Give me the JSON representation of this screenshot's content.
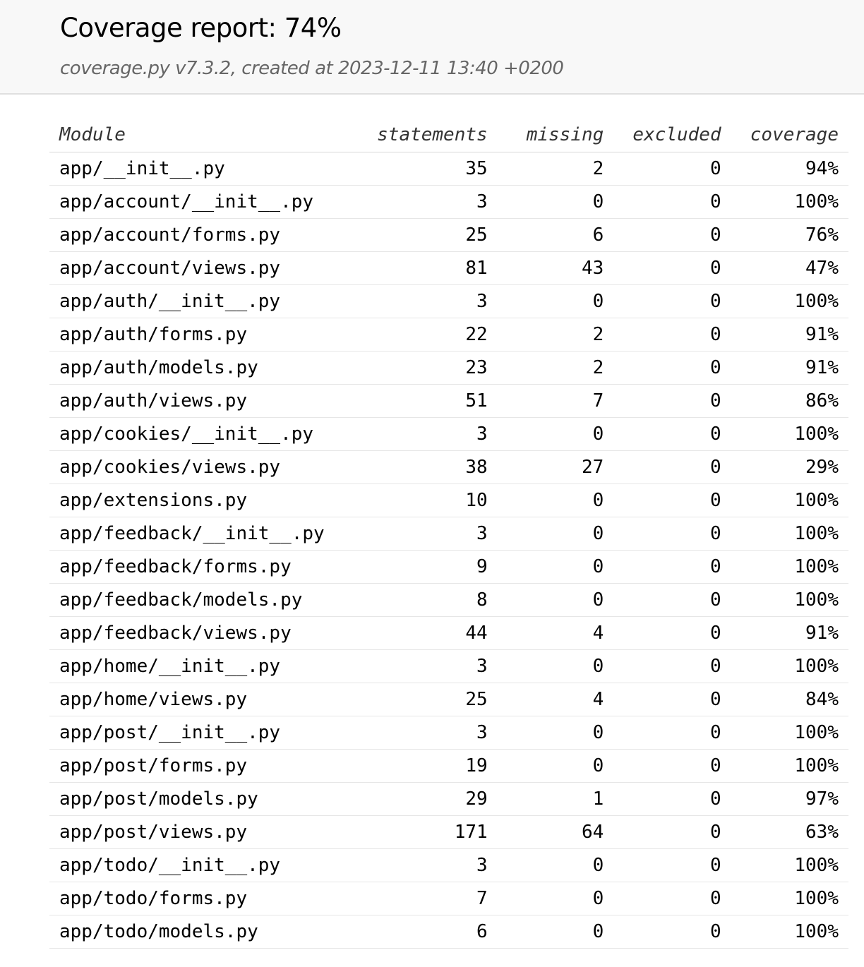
{
  "header": {
    "title": "Coverage report: 74%",
    "subtitle": "coverage.py v7.3.2, created at 2023-12-11 13:40 +0200"
  },
  "table": {
    "columns": [
      "Module",
      "statements",
      "missing",
      "excluded",
      "coverage"
    ],
    "rows": [
      [
        "app/__init__.py",
        "35",
        "2",
        "0",
        "94%"
      ],
      [
        "app/account/__init__.py",
        "3",
        "0",
        "0",
        "100%"
      ],
      [
        "app/account/forms.py",
        "25",
        "6",
        "0",
        "76%"
      ],
      [
        "app/account/views.py",
        "81",
        "43",
        "0",
        "47%"
      ],
      [
        "app/auth/__init__.py",
        "3",
        "0",
        "0",
        "100%"
      ],
      [
        "app/auth/forms.py",
        "22",
        "2",
        "0",
        "91%"
      ],
      [
        "app/auth/models.py",
        "23",
        "2",
        "0",
        "91%"
      ],
      [
        "app/auth/views.py",
        "51",
        "7",
        "0",
        "86%"
      ],
      [
        "app/cookies/__init__.py",
        "3",
        "0",
        "0",
        "100%"
      ],
      [
        "app/cookies/views.py",
        "38",
        "27",
        "0",
        "29%"
      ],
      [
        "app/extensions.py",
        "10",
        "0",
        "0",
        "100%"
      ],
      [
        "app/feedback/__init__.py",
        "3",
        "0",
        "0",
        "100%"
      ],
      [
        "app/feedback/forms.py",
        "9",
        "0",
        "0",
        "100%"
      ],
      [
        "app/feedback/models.py",
        "8",
        "0",
        "0",
        "100%"
      ],
      [
        "app/feedback/views.py",
        "44",
        "4",
        "0",
        "91%"
      ],
      [
        "app/home/__init__.py",
        "3",
        "0",
        "0",
        "100%"
      ],
      [
        "app/home/views.py",
        "25",
        "4",
        "0",
        "84%"
      ],
      [
        "app/post/__init__.py",
        "3",
        "0",
        "0",
        "100%"
      ],
      [
        "app/post/forms.py",
        "19",
        "0",
        "0",
        "100%"
      ],
      [
        "app/post/models.py",
        "29",
        "1",
        "0",
        "97%"
      ],
      [
        "app/post/views.py",
        "171",
        "64",
        "0",
        "63%"
      ],
      [
        "app/todo/__init__.py",
        "3",
        "0",
        "0",
        "100%"
      ],
      [
        "app/todo/forms.py",
        "7",
        "0",
        "0",
        "100%"
      ],
      [
        "app/todo/models.py",
        "6",
        "0",
        "0",
        "100%"
      ]
    ]
  }
}
